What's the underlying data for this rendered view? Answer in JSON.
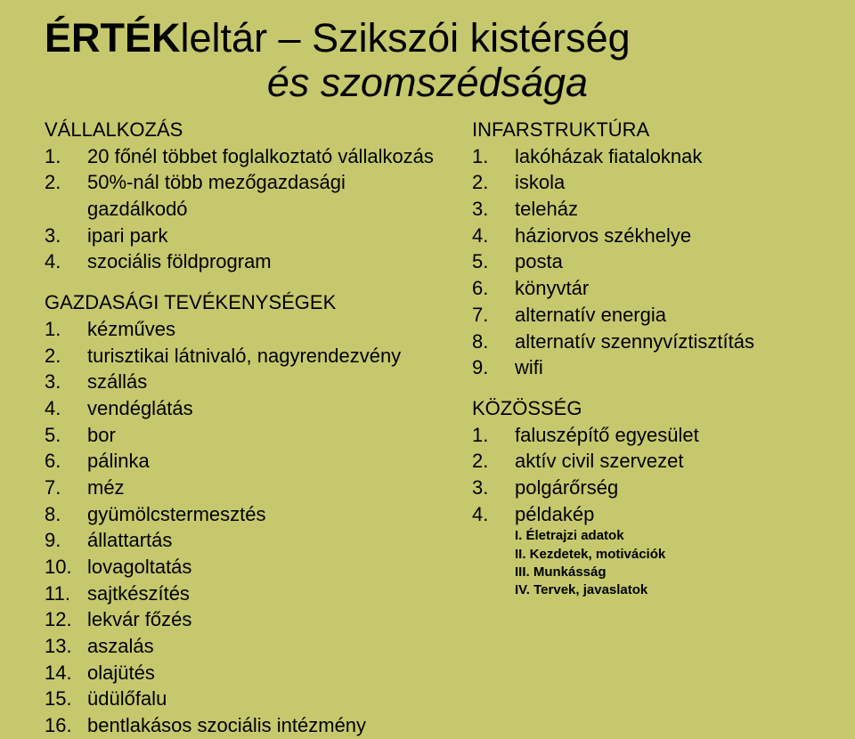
{
  "title": {
    "prefix_bold": "ÉRTÉK",
    "prefix_rest": "leltár – Szikszói kistérség",
    "line2": "és szomszédsága"
  },
  "left": {
    "section1": {
      "header": "VÁLLALKOZÁS",
      "items": [
        "20 főnél többet foglalkoztató vállalkozás",
        "50%-nál több mezőgazdasági gazdálkodó",
        "ipari park",
        "szociális földprogram"
      ]
    },
    "section2": {
      "header": "GAZDASÁGI TEVÉKENYSÉGEK",
      "items": [
        "kézműves",
        "turisztikai látnivaló, nagyrendezvény",
        "szállás",
        "vendéglátás",
        "bor",
        "pálinka",
        "méz",
        "gyümölcstermesztés",
        "állattartás",
        "lovagoltatás",
        "sajtkészítés",
        "lekvár főzés",
        "aszalás",
        "olajütés",
        "üdülőfalu",
        "bentlakásos szociális intézmény"
      ]
    }
  },
  "right": {
    "section1": {
      "header": "INFARSTRUKTÚRA",
      "items": [
        "lakóházak fiataloknak",
        "iskola",
        "teleház",
        "háziorvos székhelye",
        "posta",
        "könyvtár",
        "alternatív energia",
        "alternatív szennyvíztisztítás",
        "wifi"
      ]
    },
    "section2": {
      "header": "KÖZÖSSÉG",
      "items": [
        "faluszépítő egyesület",
        "aktív civil szervezet",
        "polgárőrség",
        "példakép"
      ],
      "subitems": [
        "I. Életrajzi adatok",
        "II. Kezdetek, motivációk",
        "III. Munkásság",
        "IV. Tervek, javaslatok"
      ]
    }
  },
  "colors": {
    "background": "#c6c86e",
    "text": "#000000"
  },
  "fonts": {
    "title_size": 45,
    "body_size": 22,
    "sub_size": 15
  }
}
